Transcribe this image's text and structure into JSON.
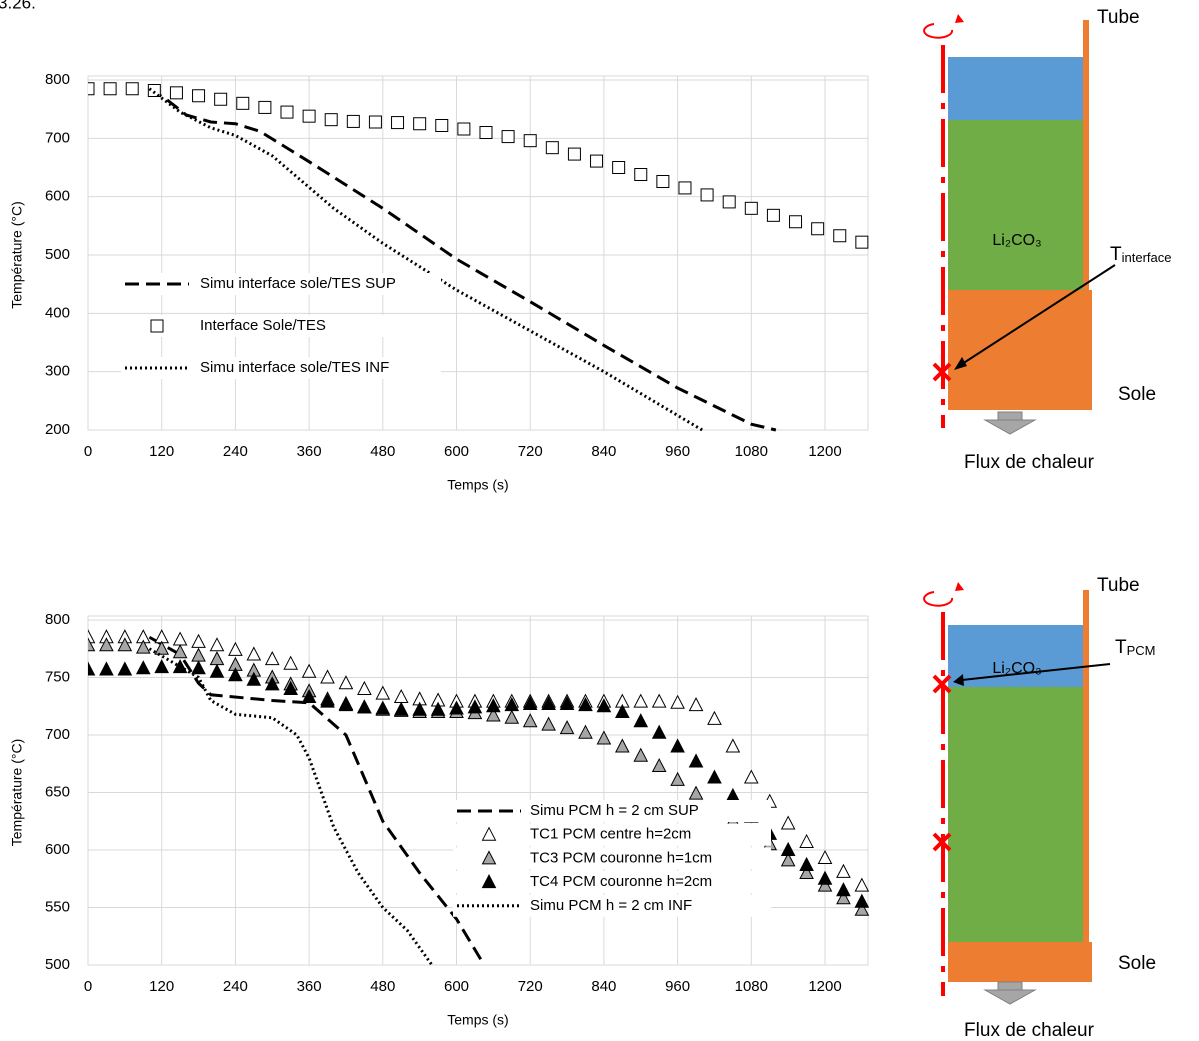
{
  "fragment": "3.26.",
  "chart_data": [
    {
      "type": "line",
      "x_label": "Temps (s)",
      "y_label": "Température (°C)",
      "xlim": [
        0,
        1270
      ],
      "xticks": [
        0,
        120,
        240,
        360,
        480,
        600,
        720,
        840,
        960,
        1080,
        1200
      ],
      "ylim": [
        200,
        800
      ],
      "yticks": [
        200,
        300,
        400,
        500,
        600,
        700,
        800
      ],
      "grid": true,
      "series": [
        {
          "name": "Simu interface sole/TES SUP",
          "style": "dashed",
          "color": "#000000",
          "x": [
            100,
            130,
            160,
            200,
            240,
            280,
            360,
            480,
            600,
            720,
            840,
            960,
            1080,
            1120
          ],
          "values": [
            785,
            765,
            740,
            728,
            725,
            712,
            660,
            580,
            493,
            420,
            345,
            272,
            210,
            200
          ]
        },
        {
          "name": "Interface Sole/TES",
          "style": "square",
          "color": "#ffffff",
          "x": [
            0,
            36,
            72,
            108,
            144,
            180,
            216,
            252,
            288,
            324,
            360,
            396,
            432,
            468,
            504,
            540,
            576,
            612,
            648,
            684,
            720,
            756,
            792,
            828,
            864,
            900,
            936,
            972,
            1008,
            1044,
            1080,
            1116,
            1152,
            1188,
            1224,
            1260
          ],
          "values": [
            785,
            785,
            785,
            782,
            778,
            773,
            767,
            760,
            753,
            745,
            738,
            732,
            729,
            728,
            727,
            725,
            722,
            716,
            710,
            703,
            696,
            684,
            673,
            661,
            650,
            638,
            626,
            615,
            603,
            591,
            580,
            568,
            557,
            545,
            533,
            522
          ]
        },
        {
          "name": "Simu interface sole/TES INF",
          "style": "dotted",
          "color": "#000000",
          "x": [
            100,
            150,
            200,
            240,
            300,
            400,
            480,
            600,
            720,
            840,
            960,
            1000
          ],
          "values": [
            785,
            745,
            718,
            705,
            670,
            580,
            520,
            440,
            370,
            300,
            225,
            200
          ]
        }
      ]
    },
    {
      "type": "line",
      "x_label": "Temps (s)",
      "y_label": "Température (°C)",
      "xlim": [
        0,
        1270
      ],
      "xticks": [
        0,
        120,
        240,
        360,
        480,
        600,
        720,
        840,
        960,
        1080,
        1200
      ],
      "ylim": [
        500,
        800
      ],
      "yticks": [
        500,
        550,
        600,
        650,
        700,
        750,
        800
      ],
      "grid": true,
      "series": [
        {
          "name": "Simu PCM h = 2 cm SUP",
          "style": "dashed",
          "color": "#000000",
          "x": [
            100,
            150,
            180,
            200,
            300,
            360,
            420,
            460,
            480,
            540,
            600,
            645
          ],
          "values": [
            785,
            770,
            745,
            735,
            730,
            728,
            700,
            650,
            625,
            580,
            540,
            500
          ]
        },
        {
          "name": "TC1 PCM centre h=2cm",
          "style": "triangle",
          "color": "#ffffff",
          "x": [
            0,
            30,
            60,
            90,
            120,
            150,
            180,
            210,
            240,
            270,
            300,
            330,
            360,
            390,
            420,
            450,
            480,
            510,
            540,
            570,
            600,
            630,
            660,
            690,
            720,
            750,
            780,
            810,
            840,
            870,
            900,
            930,
            960,
            990,
            1020,
            1050,
            1080,
            1110,
            1140,
            1170,
            1200,
            1230,
            1260
          ],
          "values": [
            785,
            785,
            785,
            785,
            785,
            783,
            781,
            778,
            774,
            770,
            766,
            762,
            755,
            750,
            745,
            740,
            736,
            733,
            731,
            730,
            729,
            729,
            729,
            729,
            729,
            729,
            729,
            729,
            729,
            729,
            729,
            729,
            728,
            726,
            714,
            690,
            663,
            642,
            623,
            607,
            593,
            581,
            569
          ]
        },
        {
          "name": "TC3 PCM couronne h=1cm",
          "style": "triangle",
          "color": "#a6a6a6",
          "x": [
            0,
            30,
            60,
            90,
            120,
            150,
            180,
            210,
            240,
            270,
            300,
            330,
            360,
            390,
            420,
            450,
            480,
            510,
            540,
            570,
            600,
            630,
            660,
            690,
            720,
            750,
            780,
            810,
            840,
            870,
            900,
            930,
            960,
            990,
            1020,
            1050,
            1080,
            1110,
            1140,
            1170,
            1200,
            1230,
            1260
          ],
          "values": [
            778,
            778,
            778,
            776,
            775,
            772,
            769,
            766,
            761,
            756,
            750,
            744,
            738,
            731,
            727,
            724,
            722,
            721,
            720,
            720,
            720,
            719,
            717,
            715,
            712,
            709,
            706,
            702,
            697,
            690,
            682,
            673,
            661,
            649,
            636,
            625,
            614,
            605,
            591,
            580,
            569,
            558,
            548
          ]
        },
        {
          "name": "TC4 PCM couronne h=2cm",
          "style": "triangle",
          "color": "#000000",
          "x": [
            0,
            30,
            60,
            90,
            120,
            150,
            180,
            210,
            240,
            270,
            300,
            330,
            360,
            390,
            420,
            450,
            480,
            510,
            540,
            570,
            600,
            630,
            660,
            690,
            720,
            750,
            780,
            810,
            840,
            870,
            900,
            930,
            960,
            990,
            1020,
            1050,
            1080,
            1110,
            1140,
            1170,
            1200,
            1230,
            1260
          ],
          "values": [
            757,
            757,
            757,
            758,
            759,
            759,
            758,
            755,
            752,
            748,
            744,
            740,
            733,
            729,
            726,
            724,
            723,
            722,
            722,
            722,
            723,
            724,
            725,
            726,
            727,
            727,
            727,
            726,
            725,
            720,
            712,
            702,
            690,
            677,
            663,
            647,
            629,
            614,
            600,
            587,
            575,
            565,
            555
          ]
        },
        {
          "name": "Simu PCM h = 2 cm INF",
          "style": "dotted",
          "color": "#000000",
          "x": [
            100,
            180,
            200,
            240,
            300,
            340,
            360,
            400,
            440,
            480,
            520,
            560
          ],
          "values": [
            775,
            750,
            730,
            718,
            715,
            700,
            680,
            620,
            580,
            550,
            530,
            500
          ]
        }
      ]
    }
  ],
  "diagrams": [
    {
      "tube": "Tube",
      "material": "Li₂CO₃",
      "probe": "T",
      "probe_sub": "interface",
      "sole": "Sole",
      "flux": "Flux de chaleur"
    },
    {
      "tube": "Tube",
      "material": "Li₂CO₃",
      "probe": "T",
      "probe_sub": "PCM",
      "sole": "Sole",
      "flux": "Flux de chaleur"
    }
  ]
}
